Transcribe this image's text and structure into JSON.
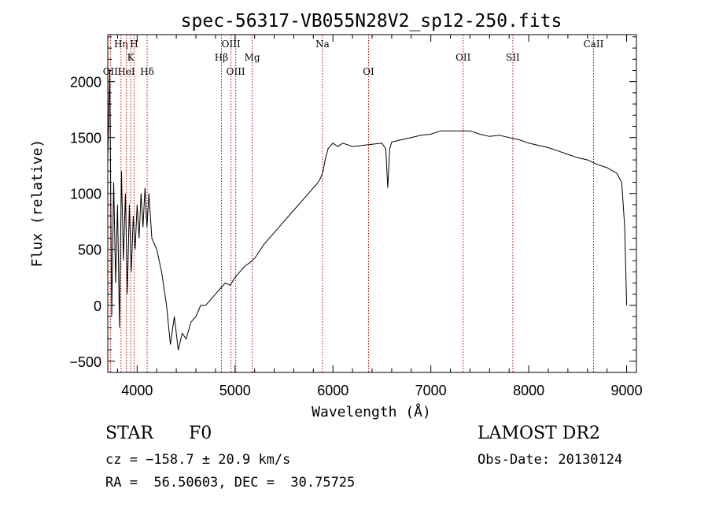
{
  "chart_data": {
    "type": "line",
    "title": "spec-56317-VB055N28V2_sp12-250.fits",
    "xlabel": "Wavelength (Å)",
    "ylabel": "Flux (relative)",
    "xlim": [
      3700,
      9100
    ],
    "ylim": [
      -600,
      2420
    ],
    "x_ticks": [
      4000,
      5000,
      6000,
      7000,
      8000,
      9000
    ],
    "y_ticks": [
      -500,
      0,
      500,
      1000,
      1500,
      2000
    ],
    "grid": false,
    "line_color": "#000000",
    "marker_color": "#c00000",
    "series": [
      {
        "x": [
          3700,
          3720,
          3740,
          3760,
          3780,
          3800,
          3820,
          3840,
          3860,
          3880,
          3900,
          3920,
          3940,
          3960,
          3980,
          4000,
          4020,
          4040,
          4060,
          4080,
          4100,
          4120,
          4150,
          4200,
          4250,
          4300,
          4340,
          4380,
          4420,
          4460,
          4500,
          4550,
          4600,
          4650,
          4700,
          4750,
          4800,
          4850,
          4900,
          4950,
          5000,
          5050,
          5100,
          5150,
          5200,
          5300,
          5400,
          5500,
          5600,
          5700,
          5800,
          5850,
          5880,
          5900,
          5920,
          5950,
          6000,
          6050,
          6100,
          6200,
          6300,
          6400,
          6500,
          6540,
          6560,
          6580,
          6600,
          6700,
          6800,
          6900,
          7000,
          7100,
          7200,
          7300,
          7400,
          7500,
          7600,
          7700,
          7800,
          7900,
          8000,
          8100,
          8200,
          8300,
          8400,
          8500,
          8600,
          8700,
          8800,
          8900,
          8950,
          8980,
          9000
        ],
        "y": [
          1300,
          2100,
          -100,
          1100,
          200,
          900,
          -200,
          1200,
          400,
          1000,
          100,
          900,
          300,
          800,
          500,
          900,
          600,
          1000,
          700,
          1050,
          700,
          1000,
          600,
          500,
          300,
          0,
          -350,
          -100,
          -400,
          -250,
          -300,
          -150,
          -100,
          0,
          0,
          50,
          100,
          150,
          200,
          180,
          250,
          300,
          350,
          380,
          420,
          550,
          650,
          750,
          850,
          950,
          1050,
          1100,
          1150,
          1200,
          1300,
          1400,
          1450,
          1420,
          1450,
          1420,
          1430,
          1440,
          1450,
          1400,
          1050,
          1400,
          1460,
          1480,
          1500,
          1520,
          1530,
          1560,
          1560,
          1560,
          1560,
          1530,
          1510,
          1520,
          1500,
          1480,
          1450,
          1430,
          1410,
          1380,
          1350,
          1320,
          1300,
          1260,
          1230,
          1180,
          1100,
          700,
          0
        ]
      }
    ],
    "line_markers": [
      {
        "label": "OII",
        "x": 3727,
        "row": 3
      },
      {
        "label": "Hη",
        "x": 3835,
        "row": 1
      },
      {
        "label": "HeI",
        "x": 3889,
        "row": 3
      },
      {
        "label": "K",
        "x": 3934,
        "row": 2
      },
      {
        "label": "H",
        "x": 3969,
        "row": 1
      },
      {
        "label": "Hδ",
        "x": 4102,
        "row": 3
      },
      {
        "label": "Hβ",
        "x": 4861,
        "row": 2
      },
      {
        "label": "OIII",
        "x": 4959,
        "row": 1
      },
      {
        "label": "OIII",
        "x": 5007,
        "row": 3
      },
      {
        "label": "Mg",
        "x": 5175,
        "row": 2
      },
      {
        "label": "Na",
        "x": 5893,
        "row": 1
      },
      {
        "label": "OI",
        "x": 6364,
        "row": 3
      },
      {
        "label": "OII",
        "x": 7330,
        "row": 2
      },
      {
        "label": "SII",
        "x": 7838,
        "row": 2
      },
      {
        "label": "CaII",
        "x": 8662,
        "row": 1
      }
    ]
  },
  "info": {
    "class_label": "STAR",
    "subclass": "F0",
    "survey": "LAMOST DR2",
    "velocity": "cz = −158.7 ± 20.9 km/s",
    "obs_date": "Obs-Date: 20130124",
    "coords": "RA =  56.50603, DEC =  30.75725"
  }
}
